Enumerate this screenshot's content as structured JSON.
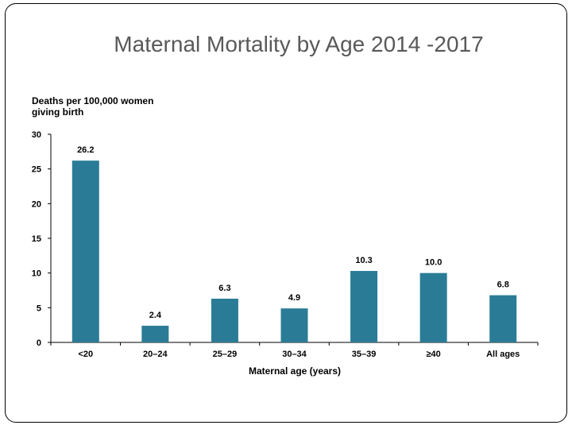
{
  "slide": {
    "title": "Maternal Mortality by Age 2014 -2017"
  },
  "chart_data": {
    "type": "bar",
    "title": "Maternal Mortality by Age 2014 -2017",
    "ylabel_lines": [
      "Deaths per 100,000 women",
      "giving birth"
    ],
    "xlabel": "Maternal age (years)",
    "categories": [
      "<20",
      "20–24",
      "25–29",
      "30–34",
      "35–39",
      "≥40",
      "All ages"
    ],
    "values": [
      26.2,
      2.4,
      6.3,
      4.9,
      10.3,
      10.0,
      6.8
    ],
    "value_labels": [
      "26.2",
      "2.4",
      "6.3",
      "4.9",
      "10.3",
      "10.0",
      "6.8"
    ],
    "ylim": [
      0,
      30
    ],
    "yticks": [
      0,
      5,
      10,
      15,
      20,
      25,
      30
    ],
    "grid": false,
    "legend": "none",
    "bar_color": "#2a7c96"
  }
}
